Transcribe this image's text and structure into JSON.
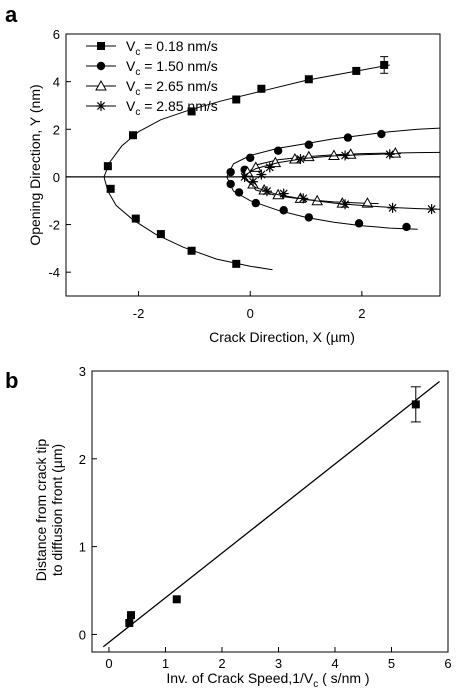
{
  "chart_data": [
    {
      "panel_label": "a",
      "type": "scatter",
      "xlabel_main": "Crack Direction, X (",
      "xlabel_unit": "µm",
      "xlabel_close": ")",
      "ylabel": "Opening Direction, Y (nm)",
      "xlim": [
        -3.3,
        3.4
      ],
      "ylim": [
        -5,
        6
      ],
      "xticks": [
        -2,
        0,
        2
      ],
      "yticks": [
        -4,
        -2,
        0,
        2,
        4,
        6
      ],
      "grid": false,
      "legend_position": "top-left",
      "zero_line": true,
      "series": [
        {
          "name_prefix": "V",
          "name_sub": "c",
          "name_suffix": " = 0.18 nm/s",
          "marker": "square",
          "points": [
            [
              -2.55,
              0.45
            ],
            [
              -2.5,
              -0.5
            ],
            [
              -2.1,
              1.75
            ],
            [
              -2.05,
              -1.75
            ],
            [
              -1.6,
              -2.4
            ],
            [
              -1.05,
              2.75
            ],
            [
              -1.05,
              -3.1
            ],
            [
              -0.25,
              3.25
            ],
            [
              -0.25,
              -3.65
            ],
            [
              0.2,
              3.7
            ],
            [
              1.05,
              4.1
            ],
            [
              1.9,
              4.45
            ],
            [
              2.4,
              4.7
            ]
          ],
          "error_bars": [
            {
              "x": 2.4,
              "y": 4.7,
              "err": 0.35
            }
          ],
          "upper_fit": [
            [
              -2.62,
              0.0
            ],
            [
              -2.52,
              0.6
            ],
            [
              -2.3,
              1.3
            ],
            [
              -2.0,
              1.9
            ],
            [
              -1.6,
              2.4
            ],
            [
              -1.1,
              2.8
            ],
            [
              -0.5,
              3.2
            ],
            [
              0.2,
              3.6
            ],
            [
              1.0,
              4.05
            ],
            [
              1.8,
              4.4
            ],
            [
              2.5,
              4.7
            ]
          ],
          "lower_fit": [
            [
              -2.62,
              0.0
            ],
            [
              -2.55,
              -0.6
            ],
            [
              -2.4,
              -1.2
            ],
            [
              -2.1,
              -1.8
            ],
            [
              -1.7,
              -2.4
            ],
            [
              -1.2,
              -2.95
            ],
            [
              -0.6,
              -3.45
            ],
            [
              0.0,
              -3.75
            ],
            [
              0.4,
              -3.9
            ]
          ]
        },
        {
          "name_prefix": "V",
          "name_sub": "c",
          "name_suffix": " = 1.50 nm/s",
          "marker": "circle",
          "points": [
            [
              -0.35,
              0.2
            ],
            [
              -0.35,
              -0.3
            ],
            [
              -0.2,
              -0.65
            ],
            [
              -0.1,
              0.3
            ],
            [
              0.0,
              0.8
            ],
            [
              0.1,
              -1.1
            ],
            [
              0.5,
              1.1
            ],
            [
              0.6,
              -1.4
            ],
            [
              1.05,
              1.35
            ],
            [
              1.05,
              -1.7
            ],
            [
              1.75,
              1.65
            ],
            [
              1.95,
              -1.95
            ],
            [
              2.35,
              1.8
            ],
            [
              2.8,
              -2.1
            ]
          ],
          "upper_fit": [
            [
              -0.42,
              0.0
            ],
            [
              -0.3,
              0.55
            ],
            [
              0.0,
              0.9
            ],
            [
              0.5,
              1.2
            ],
            [
              1.0,
              1.4
            ],
            [
              1.5,
              1.6
            ],
            [
              2.0,
              1.75
            ],
            [
              2.5,
              1.9
            ],
            [
              3.0,
              2.0
            ],
            [
              3.4,
              2.05
            ]
          ],
          "lower_fit": [
            [
              -0.42,
              0.0
            ],
            [
              -0.3,
              -0.6
            ],
            [
              0.0,
              -1.0
            ],
            [
              0.5,
              -1.4
            ],
            [
              1.0,
              -1.7
            ],
            [
              1.5,
              -1.9
            ],
            [
              2.0,
              -2.05
            ],
            [
              2.5,
              -2.15
            ],
            [
              3.0,
              -2.2
            ]
          ]
        },
        {
          "name_prefix": "V",
          "name_sub": "c",
          "name_suffix": " = 2.65 nm/s",
          "marker": "triangle",
          "points": [
            [
              -0.05,
              0.2
            ],
            [
              0.05,
              -0.3
            ],
            [
              0.1,
              0.4
            ],
            [
              0.25,
              -0.55
            ],
            [
              0.45,
              0.6
            ],
            [
              0.5,
              -0.75
            ],
            [
              0.8,
              0.75
            ],
            [
              0.9,
              -0.9
            ],
            [
              1.05,
              0.85
            ],
            [
              1.2,
              -1.0
            ],
            [
              1.5,
              0.9
            ],
            [
              1.65,
              -1.1
            ],
            [
              1.8,
              0.95
            ],
            [
              2.1,
              -1.1
            ],
            [
              2.6,
              1.0
            ]
          ],
          "upper_fit": [
            [
              -0.1,
              0.0
            ],
            [
              0.1,
              0.5
            ],
            [
              0.5,
              0.72
            ],
            [
              1.0,
              0.85
            ],
            [
              1.5,
              0.93
            ],
            [
              2.0,
              0.98
            ],
            [
              2.5,
              1.0
            ],
            [
              3.0,
              1.02
            ],
            [
              3.4,
              1.03
            ]
          ],
          "lower_fit": [
            [
              -0.1,
              0.0
            ],
            [
              0.1,
              -0.55
            ],
            [
              0.5,
              -0.8
            ],
            [
              1.0,
              -0.95
            ],
            [
              1.5,
              -1.05
            ],
            [
              2.0,
              -1.1
            ],
            [
              2.3,
              -1.12
            ]
          ]
        },
        {
          "name_prefix": "V",
          "name_sub": "c",
          "name_suffix": " = 2.85 nm/s",
          "marker": "asterisk",
          "points": [
            [
              -0.1,
              0.0
            ],
            [
              0.05,
              -0.2
            ],
            [
              0.2,
              0.1
            ],
            [
              0.3,
              -0.6
            ],
            [
              0.35,
              0.4
            ],
            [
              0.6,
              -0.7
            ],
            [
              0.9,
              0.75
            ],
            [
              0.95,
              -0.9
            ],
            [
              1.7,
              0.9
            ],
            [
              1.7,
              -1.15
            ],
            [
              2.5,
              0.95
            ],
            [
              2.55,
              -1.3
            ],
            [
              3.25,
              -1.35
            ]
          ],
          "upper_fit": [
            [
              -0.15,
              0.0
            ],
            [
              0.1,
              0.35
            ],
            [
              0.5,
              0.6
            ],
            [
              1.0,
              0.78
            ],
            [
              1.5,
              0.88
            ],
            [
              2.0,
              0.93
            ],
            [
              2.5,
              0.97
            ],
            [
              2.7,
              0.98
            ]
          ],
          "lower_fit": [
            [
              -0.15,
              0.0
            ],
            [
              0.1,
              -0.45
            ],
            [
              0.5,
              -0.75
            ],
            [
              1.0,
              -0.95
            ],
            [
              1.5,
              -1.1
            ],
            [
              2.0,
              -1.2
            ],
            [
              2.5,
              -1.28
            ],
            [
              3.0,
              -1.33
            ],
            [
              3.4,
              -1.36
            ]
          ]
        }
      ]
    },
    {
      "panel_label": "b",
      "type": "scatter",
      "xlabel_main": "Inv. of Crack Speed,1/V",
      "xlabel_sub": "c",
      "xlabel_close": " ( s/nm )",
      "ylabel_line1": "Distance from crack tip",
      "ylabel_line2_main": "to diffusion front (",
      "ylabel_unit": "µm",
      "ylabel_close": ")",
      "xlim": [
        -0.3,
        6
      ],
      "ylim": [
        -0.2,
        3
      ],
      "xticks": [
        0,
        1,
        2,
        3,
        4,
        5,
        6
      ],
      "yticks": [
        0,
        1,
        2,
        3
      ],
      "grid": false,
      "series": [
        {
          "marker": "square",
          "points": [
            [
              0.36,
              0.13
            ],
            [
              0.39,
              0.22
            ],
            [
              1.2,
              0.4
            ],
            [
              5.43,
              2.62
            ]
          ],
          "error_bars": [
            {
              "x": 5.43,
              "y": 2.62,
              "err": 0.2
            }
          ],
          "fit_line": [
            [
              -0.1,
              -0.14
            ],
            [
              5.85,
              2.88
            ]
          ]
        }
      ]
    }
  ]
}
